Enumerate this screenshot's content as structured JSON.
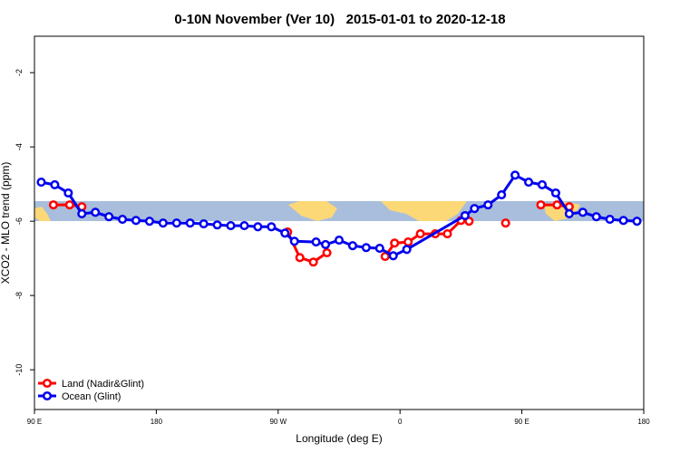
{
  "chart_data": {
    "type": "line",
    "title": "0-10N November (Ver 10)   2015-01-01 to 2020-12-18",
    "x_label": "Longitude (deg E)",
    "y_label": "XCO2 - MLO trend (ppm)",
    "xlim": [
      90,
      540
    ],
    "xticks": [
      {
        "value": 90,
        "label": "90 E"
      },
      {
        "value": 180,
        "label": "180"
      },
      {
        "value": 270,
        "label": "90 W"
      },
      {
        "value": 360,
        "label": "0"
      },
      {
        "value": 450,
        "label": "90 E"
      },
      {
        "value": 540,
        "label": "180"
      }
    ],
    "ylim": [
      -11.07,
      -1.02
    ],
    "yticks": [
      -10,
      -8,
      -6,
      -4,
      -2
    ],
    "legend": "bottom-left",
    "series": [
      {
        "name": "Land (Nadir&Glint)",
        "color": "#ff0000",
        "x": [
          104,
          116,
          125,
          null,
          277,
          286,
          296,
          306,
          null,
          349,
          356,
          366,
          375,
          386,
          395,
          405,
          411,
          null,
          438,
          null,
          464,
          476,
          485
        ],
        "values": [
          -5.56,
          -5.56,
          -5.61,
          null,
          -6.29,
          -6.98,
          -7.1,
          -6.85,
          null,
          -6.95,
          -6.59,
          -6.56,
          -6.34,
          -6.34,
          -6.34,
          -5.98,
          -6.0,
          null,
          -6.05,
          null,
          -5.56,
          -5.56,
          -5.61
        ]
      },
      {
        "name": "Ocean (Glint)",
        "color": "#0000ee",
        "x": [
          95,
          105,
          115,
          125,
          135,
          145,
          155,
          165,
          175,
          185,
          195,
          205,
          215,
          225,
          235,
          245,
          255,
          265,
          275,
          282,
          298,
          305,
          315,
          325,
          335,
          345,
          355,
          365,
          408,
          415,
          425,
          435,
          445,
          455,
          465,
          475,
          485,
          495,
          505,
          515,
          525,
          535
        ],
        "values": [
          -4.95,
          -5.02,
          -5.24,
          -5.8,
          -5.76,
          -5.88,
          -5.95,
          -5.98,
          -6.0,
          -6.05,
          -6.05,
          -6.05,
          -6.07,
          -6.1,
          -6.12,
          -6.12,
          -6.15,
          -6.15,
          -6.32,
          -6.54,
          -6.56,
          -6.63,
          -6.51,
          -6.66,
          -6.71,
          -6.73,
          -6.93,
          -6.76,
          -5.85,
          -5.66,
          -5.56,
          -5.29,
          -4.76,
          -4.95,
          -5.02,
          -5.24,
          -5.8,
          -5.76,
          -5.88,
          -5.95,
          -5.98,
          -6.0
        ]
      }
    ]
  }
}
